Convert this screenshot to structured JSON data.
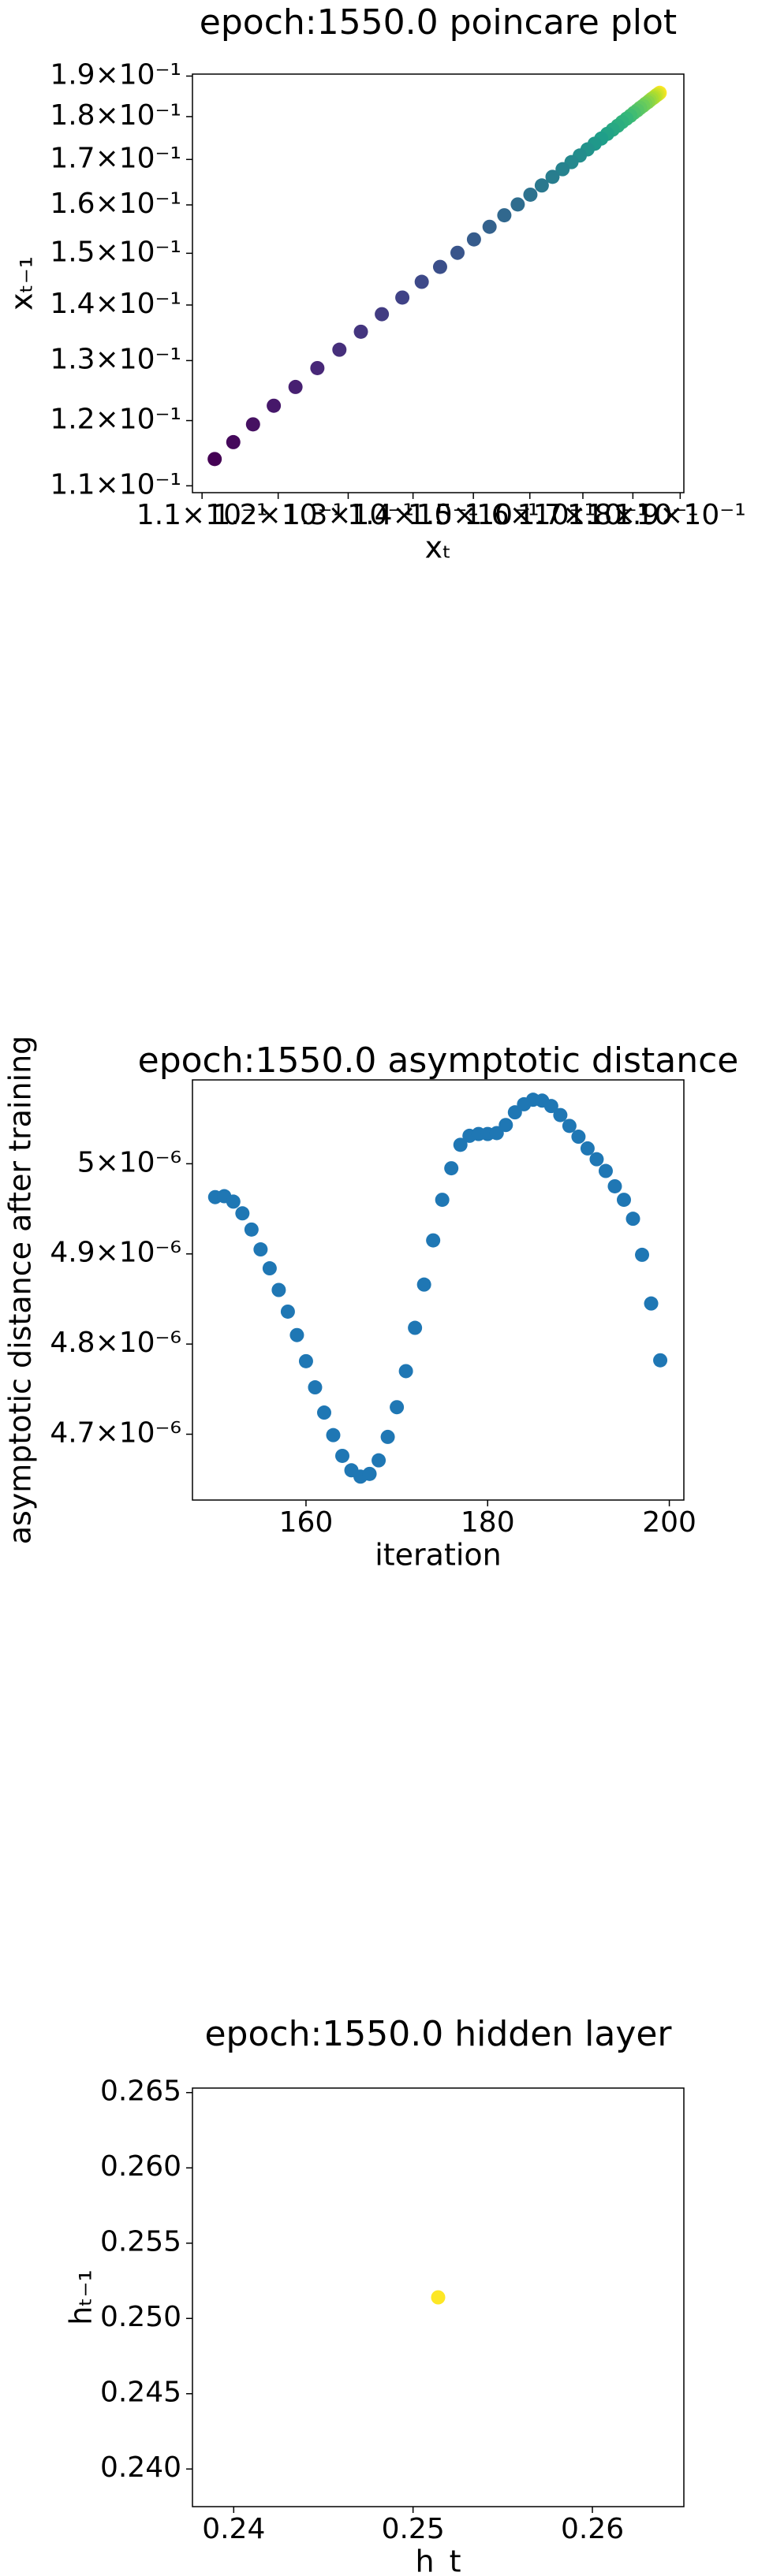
{
  "chart_data": [
    {
      "type": "scatter",
      "title": "epoch:1550.0 poincare plot",
      "x_label": "xₜ",
      "y_label": "xₜ₋₁",
      "xscale": "log",
      "yscale": "log",
      "colormap": "viridis_r",
      "x": [
        0.1856,
        0.1854,
        0.1852,
        0.1849,
        0.1846,
        0.1843,
        0.1839,
        0.1835,
        0.1831,
        0.1826,
        0.1821,
        0.1815,
        0.1809,
        0.1802,
        0.1795,
        0.1787,
        0.1778,
        0.1769,
        0.1759,
        0.1748,
        0.1736,
        0.1723,
        0.1709,
        0.1694,
        0.1678,
        0.1661,
        0.1642,
        0.1622,
        0.1601,
        0.1578,
        0.1554,
        0.1528,
        0.1501,
        0.1473,
        0.1444,
        0.1414,
        0.1383,
        0.1351,
        0.1319,
        0.1287,
        0.1255,
        0.1224,
        0.1194,
        0.1166,
        0.114,
        0.1116
      ],
      "y": [
        0.1858,
        0.1856,
        0.1854,
        0.1852,
        0.1849,
        0.1846,
        0.1843,
        0.1839,
        0.1835,
        0.1831,
        0.1826,
        0.1821,
        0.1815,
        0.1809,
        0.1802,
        0.1795,
        0.1787,
        0.1778,
        0.1769,
        0.1759,
        0.1748,
        0.1736,
        0.1723,
        0.1709,
        0.1694,
        0.1678,
        0.1661,
        0.1642,
        0.1622,
        0.1601,
        0.1578,
        0.1554,
        0.1528,
        0.1501,
        0.1473,
        0.1444,
        0.1414,
        0.1383,
        0.1351,
        0.1319,
        0.1287,
        0.1255,
        0.1224,
        0.1194,
        0.1166,
        0.114
      ],
      "xlim": [
        0.1088,
        0.1908
      ],
      "ylim": [
        0.109,
        0.1905
      ],
      "xticks": [
        {
          "value": 0.11,
          "label": "1.1×10⁻¹"
        },
        {
          "value": 0.12,
          "label": "1.2×10⁻¹"
        },
        {
          "value": 0.13,
          "label": "1.3×10⁻¹"
        },
        {
          "value": 0.14,
          "label": "1.4×10⁻¹"
        },
        {
          "value": 0.15,
          "label": "1.5×10⁻¹"
        },
        {
          "value": 0.16,
          "label": "1.6×10⁻¹"
        },
        {
          "value": 0.17,
          "label": "1.7×10⁻¹"
        },
        {
          "value": 0.18,
          "label": "1.8×10⁻¹"
        },
        {
          "value": 0.19,
          "label": "1.9×10⁻¹"
        }
      ],
      "yticks": [
        {
          "value": 0.11,
          "label": "1.1×10⁻¹"
        },
        {
          "value": 0.12,
          "label": "1.2×10⁻¹"
        },
        {
          "value": 0.13,
          "label": "1.3×10⁻¹"
        },
        {
          "value": 0.14,
          "label": "1.4×10⁻¹"
        },
        {
          "value": 0.15,
          "label": "1.5×10⁻¹"
        },
        {
          "value": 0.16,
          "label": "1.6×10⁻¹"
        },
        {
          "value": 0.17,
          "label": "1.7×10⁻¹"
        },
        {
          "value": 0.18,
          "label": "1.8×10⁻¹"
        },
        {
          "value": 0.19,
          "label": "1.9×10⁻¹"
        }
      ]
    },
    {
      "type": "scatter",
      "title": "epoch:1550.0 asymptotic distance",
      "x_label": "iteration",
      "y_label": "asymptotic distance after training",
      "color": "#1f77b4",
      "x": [
        150,
        151,
        152,
        153,
        154,
        155,
        156,
        157,
        158,
        159,
        160,
        161,
        162,
        163,
        164,
        165,
        166,
        167,
        168,
        169,
        170,
        171,
        172,
        173,
        174,
        175,
        176,
        177,
        178,
        179,
        180,
        181,
        182,
        183,
        184,
        185,
        186,
        187,
        188,
        189,
        190,
        191,
        192,
        193,
        194,
        195,
        196,
        197,
        198,
        199
      ],
      "y": [
        4.963e-06,
        4.964e-06,
        4.958e-06,
        4.945e-06,
        4.927e-06,
        4.905e-06,
        4.884e-06,
        4.86e-06,
        4.836e-06,
        4.81e-06,
        4.781e-06,
        4.752e-06,
        4.724e-06,
        4.699e-06,
        4.676e-06,
        4.66e-06,
        4.653e-06,
        4.656e-06,
        4.671e-06,
        4.697e-06,
        4.73e-06,
        4.77e-06,
        4.818e-06,
        4.866e-06,
        4.915e-06,
        4.96e-06,
        4.995e-06,
        5.021e-06,
        5.031e-06,
        5.033e-06,
        5.033e-06,
        5.034e-06,
        5.043e-06,
        5.057e-06,
        5.066e-06,
        5.071e-06,
        5.07e-06,
        5.064e-06,
        5.054e-06,
        5.042e-06,
        5.03e-06,
        5.017e-06,
        5.005e-06,
        4.992e-06,
        4.975e-06,
        4.96e-06,
        4.939e-06,
        4.899e-06,
        4.845e-06,
        4.782e-06
      ],
      "xlim": [
        147.5,
        201.6
      ],
      "ylim": [
        4.627e-06,
        5.093e-06
      ],
      "xticks": [
        160,
        180,
        200
      ],
      "yticks": [
        {
          "value": 4.7e-06,
          "label": "4.7×10⁻⁶"
        },
        {
          "value": 4.8e-06,
          "label": "4.8×10⁻⁶"
        },
        {
          "value": 4.9e-06,
          "label": "4.9×10⁻⁶"
        },
        {
          "value": 5e-06,
          "label": "5×10⁻⁶"
        }
      ]
    },
    {
      "type": "scatter",
      "title": "epoch:1550.0 hidden layer",
      "x_label": "h_t",
      "y_label": "hₜ₋₁",
      "color": "#fde725",
      "x": [
        0.2514
      ],
      "y": [
        0.2514
      ],
      "xlim": [
        0.2377,
        0.2651
      ],
      "ylim": [
        0.2375,
        0.2653
      ],
      "xticks": [
        0.24,
        0.25,
        0.26
      ],
      "yticks": [
        {
          "value": 0.24,
          "label": "0.240"
        },
        0.245,
        {
          "value": 0.25,
          "label": "0.250"
        },
        0.255,
        {
          "value": 0.26,
          "label": "0.260"
        },
        0.265
      ]
    }
  ]
}
